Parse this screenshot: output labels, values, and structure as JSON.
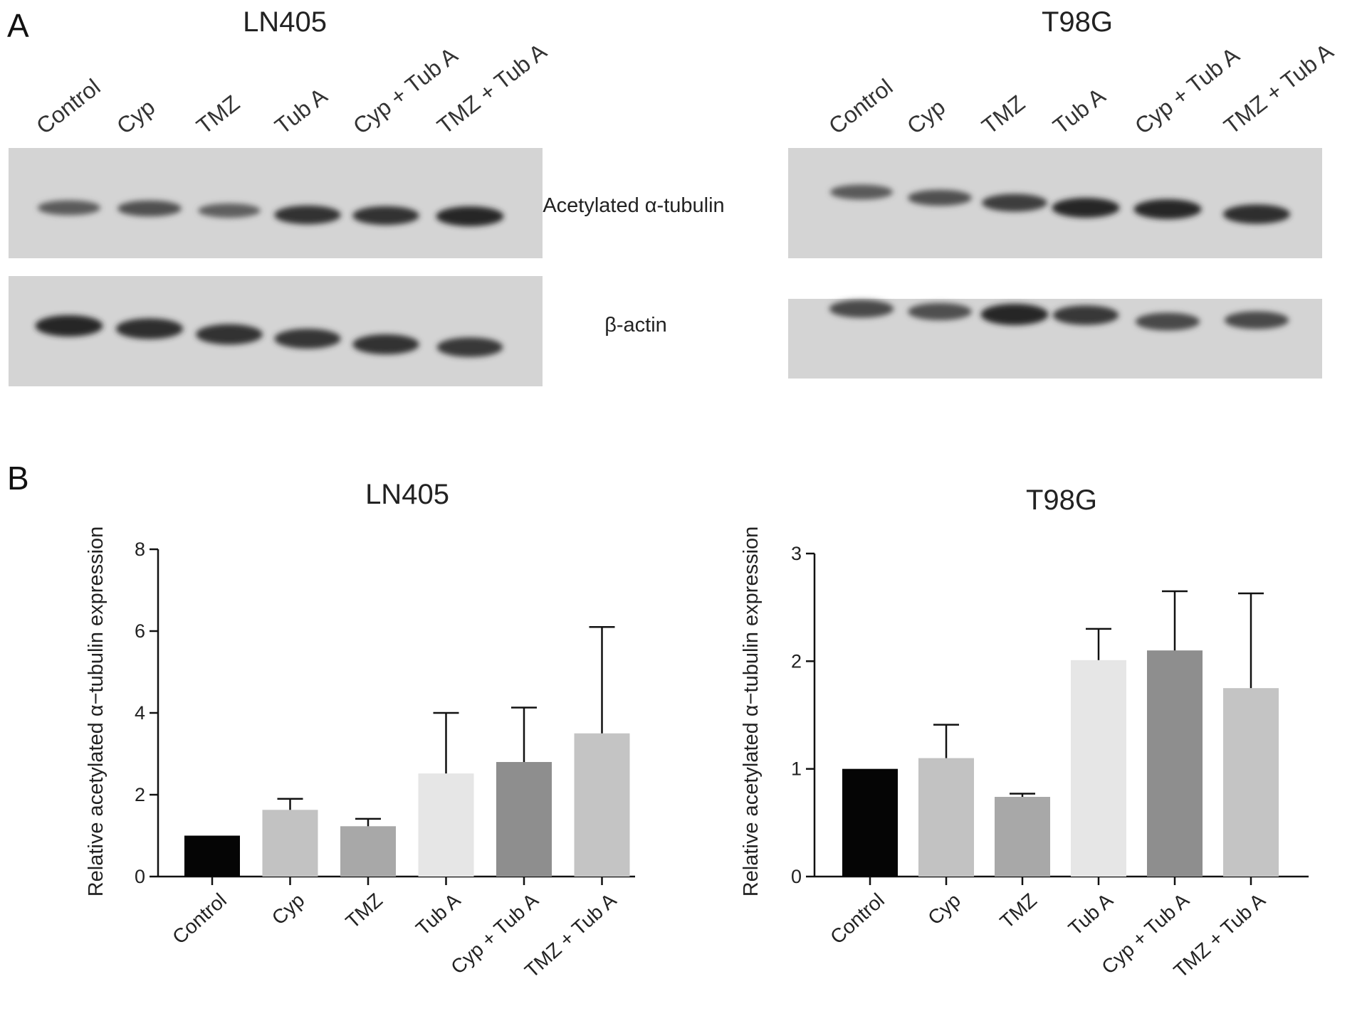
{
  "panels": {
    "a": "A",
    "b": "B"
  },
  "blots": [
    {
      "title": "LN405",
      "lanes": [
        "Control",
        "Cyp",
        "TMZ",
        "Tub A",
        "Cyp + Tub A",
        "TMZ + Tub A"
      ],
      "acetyl_intensity": [
        0.55,
        0.65,
        0.5,
        0.9,
        0.9,
        1.0
      ],
      "actin_intensity": [
        1.0,
        0.95,
        0.92,
        0.88,
        0.9,
        0.85
      ]
    },
    {
      "title": "T98G",
      "lanes": [
        "Control",
        "Cyp",
        "TMZ",
        "Tub A",
        "Cyp + Tub A",
        "TMZ + Tub A"
      ],
      "acetyl_intensity": [
        0.55,
        0.65,
        0.8,
        1.0,
        1.0,
        0.95
      ],
      "actin_intensity": [
        0.7,
        0.65,
        1.0,
        0.85,
        0.7,
        0.7
      ]
    }
  ],
  "band_labels": {
    "acetyl": "Acetylated  α-tubulin",
    "actin": "β-actin"
  },
  "chart_data": [
    {
      "type": "bar",
      "title": "LN405",
      "ylabel": "Relative acetylated α−tubulin  expression",
      "categories": [
        "Control",
        "Cyp",
        "TMZ",
        "Tub A",
        "Cyp + Tub A",
        "TMZ + Tub A"
      ],
      "values": [
        1.0,
        1.63,
        1.23,
        2.52,
        2.8,
        3.5
      ],
      "errors": [
        0,
        0.27,
        0.18,
        1.48,
        1.33,
        2.6
      ],
      "colors": [
        "#050505",
        "#c2c2c2",
        "#a8a8a8",
        "#e6e6e6",
        "#8e8e8e",
        "#c4c4c4"
      ],
      "ylim": [
        0,
        8
      ],
      "yticks": [
        0,
        2,
        4,
        6,
        8
      ]
    },
    {
      "type": "bar",
      "title": "T98G",
      "ylabel": "Relative acetylated α−tubulin  expression",
      "categories": [
        "Control",
        "Cyp",
        "TMZ",
        "Tub A",
        "Cyp + Tub A",
        "TMZ + Tub A"
      ],
      "values": [
        1.0,
        1.1,
        0.74,
        2.01,
        2.1,
        1.75
      ],
      "errors": [
        0,
        0.31,
        0.03,
        0.29,
        0.55,
        0.88
      ],
      "colors": [
        "#050505",
        "#c2c2c2",
        "#a8a8a8",
        "#e6e6e6",
        "#8e8e8e",
        "#c4c4c4"
      ],
      "ylim": [
        0,
        3
      ],
      "yticks": [
        0,
        1,
        2,
        3
      ]
    }
  ]
}
